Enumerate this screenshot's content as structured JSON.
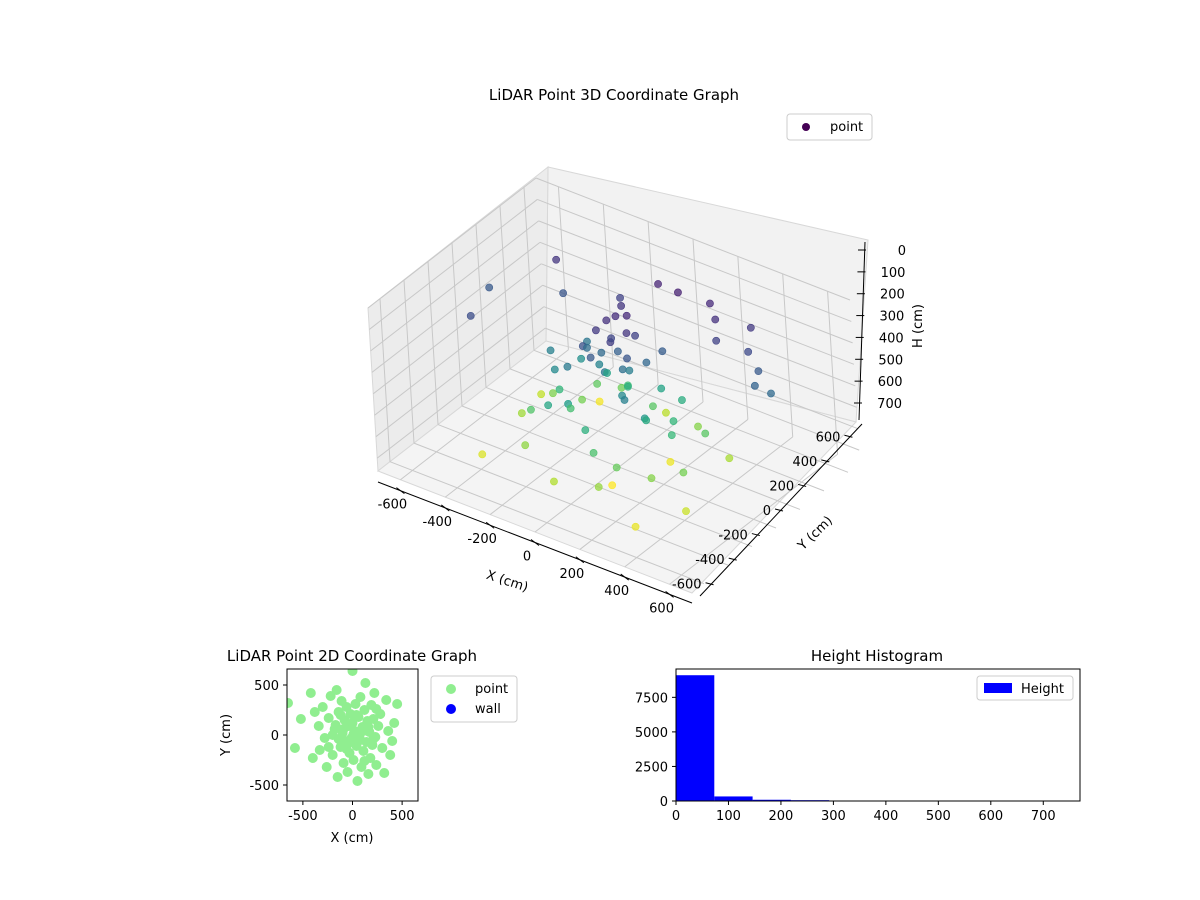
{
  "chart_data": [
    {
      "type": "scatter3d",
      "title": "LiDAR Point 3D Coordinate Graph",
      "xlabel": "X (cm)",
      "ylabel": "Y (cm)",
      "zlabel": "H (cm)",
      "xlim": [
        -700,
        700
      ],
      "ylim": [
        -700,
        700
      ],
      "zlim": [
        0,
        760
      ],
      "z_inverted": true,
      "x_ticks": [
        -600,
        -400,
        -200,
        0,
        200,
        400,
        600
      ],
      "y_ticks": [
        -600,
        -400,
        -200,
        0,
        200,
        400,
        600
      ],
      "z_ticks": [
        0,
        100,
        200,
        300,
        400,
        500,
        600,
        700
      ],
      "grid": true,
      "legend_position": "top-right",
      "colormap": "viridis",
      "series": [
        {
          "name": "point",
          "legend_color": "#440154",
          "points": [
            [
              -600,
              100,
              210
            ],
            [
              -520,
              -200,
              180
            ],
            [
              -430,
              350,
              120
            ],
            [
              -350,
              250,
              200
            ],
            [
              -280,
              0,
              330
            ],
            [
              -220,
              -80,
              360
            ],
            [
              -180,
              120,
              300
            ],
            [
              -120,
              300,
              150
            ],
            [
              -60,
              200,
              120
            ],
            [
              0,
              400,
              80
            ],
            [
              100,
              380,
              70
            ],
            [
              220,
              420,
              90
            ],
            [
              280,
              350,
              110
            ],
            [
              330,
              260,
              150
            ],
            [
              400,
              420,
              130
            ],
            [
              450,
              300,
              170
            ],
            [
              520,
              250,
              210
            ],
            [
              540,
              180,
              240
            ],
            [
              600,
              200,
              260
            ],
            [
              -50,
              -30,
              130
            ],
            [
              -40,
              40,
              110
            ],
            [
              30,
              -60,
              140
            ],
            [
              60,
              20,
              120
            ],
            [
              0,
              0,
              160
            ],
            [
              -20,
              80,
              100
            ],
            [
              70,
              70,
              150
            ],
            [
              -80,
              -90,
              190
            ],
            [
              90,
              -40,
              200
            ],
            [
              20,
              100,
              90
            ],
            [
              -30,
              -120,
              210
            ],
            [
              10,
              30,
              230
            ],
            [
              -60,
              20,
              260
            ],
            [
              50,
              -10,
              280
            ],
            [
              -10,
              -50,
              300
            ],
            [
              40,
              60,
              320
            ],
            [
              -90,
              50,
              340
            ],
            [
              80,
              -80,
              360
            ],
            [
              120,
              60,
              250
            ],
            [
              -130,
              30,
              270
            ],
            [
              150,
              140,
              220
            ],
            [
              -150,
              -100,
              310
            ],
            [
              130,
              -150,
              330
            ],
            [
              -200,
              100,
              380
            ],
            [
              200,
              -120,
              400
            ],
            [
              -100,
              -200,
              420
            ],
            [
              100,
              200,
              440
            ],
            [
              -180,
              -220,
              450
            ],
            [
              180,
              220,
              470
            ],
            [
              0,
              -250,
              480
            ],
            [
              -250,
              0,
              500
            ],
            [
              250,
              0,
              510
            ],
            [
              -80,
              250,
              520
            ],
            [
              60,
              -300,
              540
            ],
            [
              -300,
              -150,
              550
            ],
            [
              300,
              180,
              560
            ],
            [
              -220,
              250,
              570
            ],
            [
              150,
              -280,
              580
            ],
            [
              -150,
              320,
              590
            ],
            [
              350,
              -100,
              600
            ],
            [
              -350,
              120,
              610
            ],
            [
              200,
              300,
              620
            ],
            [
              -250,
              -300,
              630
            ],
            [
              120,
              -380,
              640
            ],
            [
              -400,
              -50,
              650
            ],
            [
              380,
              220,
              660
            ],
            [
              -60,
              -420,
              670
            ],
            [
              0,
              400,
              680
            ],
            [
              -450,
              200,
              690
            ],
            [
              420,
              -220,
              700
            ],
            [
              -420,
              -350,
              720
            ],
            [
              300,
              -420,
              735
            ],
            [
              150,
              150,
              740
            ],
            [
              -300,
              400,
              750
            ],
            [
              50,
              -150,
              760
            ],
            [
              -120,
              160,
              440
            ],
            [
              160,
              -40,
              460
            ],
            [
              -40,
              180,
              480
            ],
            [
              210,
              90,
              500
            ],
            [
              -170,
              -60,
              530
            ],
            [
              40,
              230,
              560
            ],
            [
              -230,
              140,
              600
            ],
            [
              260,
              -200,
              620
            ]
          ]
        }
      ]
    },
    {
      "type": "scatter",
      "title": "LiDAR Point 2D Coordinate Graph",
      "xlabel": "X (cm)",
      "ylabel": "Y (cm)",
      "xlim": [
        -660,
        660
      ],
      "ylim": [
        -660,
        660
      ],
      "x_ticks": [
        -500,
        0,
        500
      ],
      "y_ticks": [
        -500,
        0,
        500
      ],
      "legend_position": "outside-right",
      "series": [
        {
          "name": "point",
          "color": "#90ee90",
          "points": [
            [
              -650,
              320
            ],
            [
              -580,
              -130
            ],
            [
              -520,
              160
            ],
            [
              -420,
              420
            ],
            [
              -400,
              -230
            ],
            [
              -380,
              230
            ],
            [
              -340,
              90
            ],
            [
              -330,
              -150
            ],
            [
              -300,
              280
            ],
            [
              -280,
              -30
            ],
            [
              -260,
              -320
            ],
            [
              -240,
              170
            ],
            [
              -220,
              390
            ],
            [
              -200,
              -200
            ],
            [
              -180,
              60
            ],
            [
              -160,
              450
            ],
            [
              -150,
              -420
            ],
            [
              -140,
              230
            ],
            [
              -120,
              -120
            ],
            [
              -110,
              340
            ],
            [
              -100,
              20
            ],
            [
              -90,
              -280
            ],
            [
              -80,
              150
            ],
            [
              -70,
              -60
            ],
            [
              -60,
              280
            ],
            [
              -50,
              -370
            ],
            [
              -40,
              90
            ],
            [
              -30,
              -180
            ],
            [
              -20,
              210
            ],
            [
              -10,
              -30
            ],
            [
              0,
              640
            ],
            [
              0,
              120
            ],
            [
              10,
              -250
            ],
            [
              20,
              40
            ],
            [
              30,
              310
            ],
            [
              40,
              -110
            ],
            [
              50,
              -460
            ],
            [
              60,
              180
            ],
            [
              70,
              -20
            ],
            [
              80,
              380
            ],
            [
              90,
              -320
            ],
            [
              100,
              80
            ],
            [
              110,
              -160
            ],
            [
              120,
              250
            ],
            [
              130,
              520
            ],
            [
              140,
              -70
            ],
            [
              150,
              140
            ],
            [
              160,
              -390
            ],
            [
              170,
              30
            ],
            [
              180,
              -230
            ],
            [
              190,
              300
            ],
            [
              200,
              -100
            ],
            [
              210,
              160
            ],
            [
              220,
              420
            ],
            [
              230,
              -20
            ],
            [
              240,
              -300
            ],
            [
              260,
              90
            ],
            [
              280,
              210
            ],
            [
              300,
              -130
            ],
            [
              320,
              -380
            ],
            [
              340,
              350
            ],
            [
              360,
              40
            ],
            [
              380,
              -200
            ],
            [
              400,
              -60
            ],
            [
              420,
              120
            ],
            [
              450,
              310
            ],
            [
              -200,
              0
            ],
            [
              -170,
              100
            ],
            [
              -140,
              -40
            ],
            [
              -90,
              60
            ],
            [
              -40,
              -80
            ],
            [
              10,
              10
            ],
            [
              60,
              -60
            ],
            [
              110,
              40
            ],
            [
              160,
              80
            ],
            [
              210,
              -40
            ],
            [
              -60,
              -140
            ],
            [
              40,
              200
            ],
            [
              -120,
              200
            ],
            [
              120,
              -260
            ],
            [
              -240,
              -120
            ],
            [
              240,
              260
            ]
          ]
        },
        {
          "name": "wall",
          "color": "#0000ff",
          "points": []
        }
      ]
    },
    {
      "type": "bar",
      "title": "Height Histogram",
      "xlim": [
        0,
        770
      ],
      "ylim": [
        0,
        9550
      ],
      "x_ticks": [
        0,
        100,
        200,
        300,
        400,
        500,
        600,
        700
      ],
      "y_ticks": [
        0,
        2500,
        5000,
        7500
      ],
      "legend_position": "top-right",
      "series": [
        {
          "name": "Height",
          "color": "#0000ff",
          "bins": [
            {
              "x0": 0,
              "x1": 73,
              "count": 9100
            },
            {
              "x0": 73,
              "x1": 146,
              "count": 330
            },
            {
              "x0": 146,
              "x1": 219,
              "count": 90
            },
            {
              "x0": 219,
              "x1": 292,
              "count": 60
            },
            {
              "x0": 292,
              "x1": 365,
              "count": 15
            },
            {
              "x0": 365,
              "x1": 438,
              "count": 12
            },
            {
              "x0": 438,
              "x1": 511,
              "count": 10
            },
            {
              "x0": 511,
              "x1": 584,
              "count": 8
            },
            {
              "x0": 584,
              "x1": 657,
              "count": 6
            },
            {
              "x0": 657,
              "x1": 730,
              "count": 5
            }
          ]
        }
      ]
    }
  ]
}
